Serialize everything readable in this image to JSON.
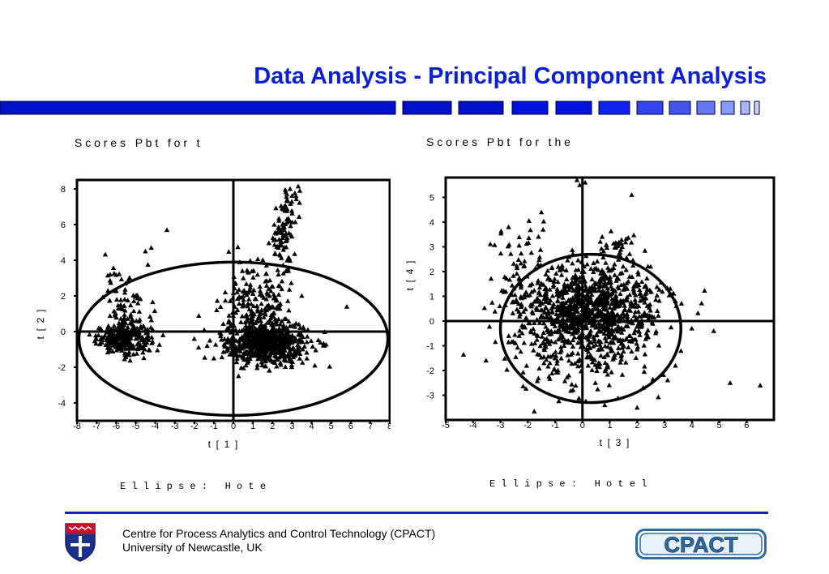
{
  "slide": {
    "title": "Data Analysis - Principal Component Analysis",
    "footer_line1": "Centre for Process Analytics and Control Technology   (CPACT)",
    "footer_line2": "University of Newcastle, UK",
    "logo_text": "CPACT"
  },
  "colors": {
    "title": "#0b1fd6",
    "bar_dark": "#0011cc",
    "bar_mid": "#2233ee",
    "bar_light": "#8899ff",
    "footer_line": "#1a1ad0",
    "logo_blue": "#2d6aa6"
  },
  "chart_data": [
    {
      "type": "scatter",
      "title": "S c o r e s   P b t   f o r   t",
      "xlabel": "t  [  1  ]",
      "ylabel": "t  [  2  ]",
      "caption": "E l l i p s e :   H o t e",
      "xlim": [
        -8,
        8
      ],
      "ylim": [
        -5,
        8.5
      ],
      "xticks": [
        -8,
        -7,
        -6,
        -5,
        -4,
        -3,
        -2,
        -1,
        0,
        1,
        2,
        3,
        4,
        5,
        6,
        7,
        8
      ],
      "yticks": [
        -4,
        -2,
        0,
        2,
        4,
        6,
        8
      ],
      "xtick_labels": [
        "-8",
        "-7",
        "-6",
        "-5",
        "-4",
        "-3",
        "-2",
        "-1",
        "0",
        "1",
        "2",
        "3",
        "4",
        "5",
        "6",
        "7",
        "8"
      ],
      "ytick_labels": [
        "-4",
        "-2",
        "0",
        "2",
        "4",
        "6",
        "8"
      ],
      "ellipse": {
        "cx": 0,
        "cy": -0.4,
        "rx": 7.9,
        "ry": 4.3
      },
      "marker": "triangle",
      "clusters": [
        {
          "cx": -5.6,
          "cy": -0.4,
          "sx": 0.7,
          "sy": 0.4,
          "n": 260
        },
        {
          "cx": -5.4,
          "cy": 1.6,
          "sx": 0.6,
          "sy": 1.0,
          "n": 80
        },
        {
          "cx": 1.7,
          "cy": -0.7,
          "sx": 1.1,
          "sy": 0.6,
          "n": 620
        },
        {
          "cx": 1.3,
          "cy": 1.6,
          "sx": 0.9,
          "sy": 1.2,
          "n": 200
        },
        {
          "cx": 2.5,
          "cy": 5.2,
          "sx": 0.3,
          "sy": 0.8,
          "n": 70
        },
        {
          "cx": 2.9,
          "cy": 7.2,
          "sx": 0.3,
          "sy": 0.6,
          "n": 25
        }
      ],
      "extra_points": [
        [
          -3.4,
          5.7
        ],
        [
          -4.5,
          4.5
        ],
        [
          -4.2,
          4.7
        ],
        [
          -2.0,
          -0.4
        ],
        [
          -1.2,
          -0.5
        ],
        [
          -6.9,
          -0.2
        ],
        [
          -6.3,
          3.2
        ],
        [
          2.9,
          8.0
        ],
        [
          3.2,
          7.6
        ],
        [
          3.4,
          7.9
        ],
        [
          -1.0,
          -1.5
        ],
        [
          5.8,
          1.4
        ]
      ]
    },
    {
      "type": "scatter",
      "title": "S c o r e s   P b t   f o r   t h e",
      "xlabel": "t  [  3  ]",
      "ylabel": "t  [  4  ]",
      "caption": "E l l i p s e :   H o t e l",
      "xlim": [
        -5,
        7
      ],
      "ylim": [
        -4,
        5.8
      ],
      "xticks": [
        -5,
        -4,
        -3,
        -2,
        -1,
        0,
        1,
        2,
        3,
        4,
        5,
        6
      ],
      "yticks": [
        -3,
        -2,
        -1,
        0,
        1,
        2,
        3,
        4,
        5
      ],
      "xtick_labels": [
        "-5",
        "-4",
        "-3",
        "-2",
        "-1",
        "0",
        "1",
        "2",
        "3",
        "4",
        "5",
        "6"
      ],
      "ytick_labels": [
        "-3",
        "-2",
        "-1",
        "0",
        "1",
        "2",
        "3",
        "4",
        "5"
      ],
      "ellipse": {
        "cx": 0.3,
        "cy": -0.3,
        "rx": 3.3,
        "ry": 3.0
      },
      "marker": "triangle",
      "clusters": [
        {
          "cx": 0.2,
          "cy": 0.5,
          "sx": 1.3,
          "sy": 0.9,
          "n": 900
        },
        {
          "cx": -0.2,
          "cy": -0.8,
          "sx": 1.6,
          "sy": 1.1,
          "n": 250
        },
        {
          "cx": 1.3,
          "cy": 3.0,
          "sx": 0.4,
          "sy": 0.3,
          "n": 30
        },
        {
          "cx": -2.3,
          "cy": 2.5,
          "sx": 0.6,
          "sy": 1.0,
          "n": 40
        }
      ],
      "extra_points": [
        [
          -0.2,
          5.7
        ],
        [
          0.1,
          5.6
        ],
        [
          -0.1,
          5.5
        ],
        [
          1.8,
          5.1
        ],
        [
          4.8,
          -0.4
        ],
        [
          5.4,
          -2.5
        ],
        [
          6.5,
          -2.6
        ],
        [
          2.0,
          -3.5
        ],
        [
          3.4,
          -1.8
        ],
        [
          4.0,
          -0.3
        ],
        [
          -1.5,
          4.4
        ],
        [
          -2.7,
          3.8
        ]
      ]
    }
  ]
}
